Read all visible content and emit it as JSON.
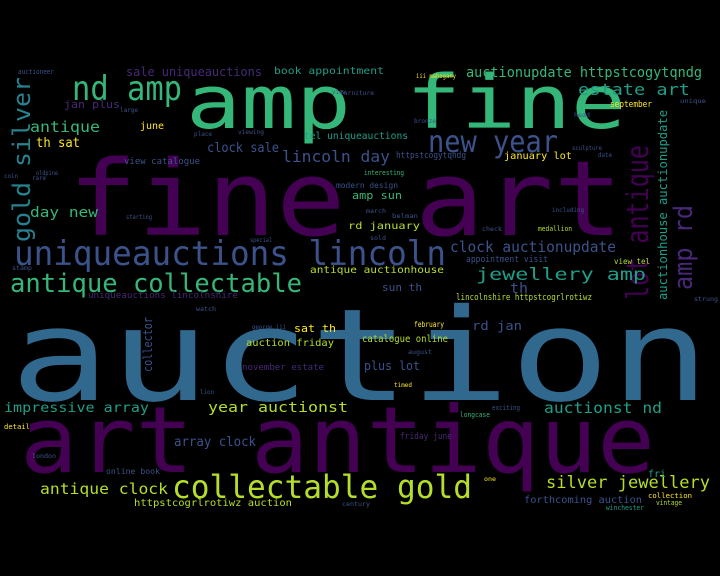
{
  "colors": {
    "background": "#000000",
    "teal": "#31688e",
    "purple": "#440154",
    "indigo": "#3b528b",
    "green": "#35b779",
    "lime": "#b5de2b",
    "yellow": "#fde725",
    "seafoam": "#1f9e89",
    "cyan": "#26828e",
    "violet": "#482878"
  },
  "words": [
    {
      "text": "auction",
      "color": "teal"
    },
    {
      "text": "fine art",
      "color": "purple"
    },
    {
      "text": "art antique",
      "color": "purple"
    },
    {
      "text": "amp fine",
      "color": "green"
    },
    {
      "text": "uniqueauctions lincoln",
      "color": "indigo"
    },
    {
      "text": "antique collectable",
      "color": "green"
    },
    {
      "text": "collectable gold",
      "color": "lime"
    },
    {
      "text": "nd amp",
      "color": "green"
    },
    {
      "text": "new year",
      "color": "indigo"
    },
    {
      "text": "lot antique",
      "color": "purple"
    },
    {
      "text": "gold silver",
      "color": "cyan"
    },
    {
      "text": "amp rd",
      "color": "violet"
    },
    {
      "text": "silver jewellery",
      "color": "lime"
    },
    {
      "text": "auctionupdate httpstcogytqndg",
      "color": "green"
    },
    {
      "text": "estate art",
      "color": "seafoam"
    },
    {
      "text": "lincoln day",
      "color": "indigo"
    },
    {
      "text": "clock auctionupdate",
      "color": "indigo"
    },
    {
      "text": "jewellery amp",
      "color": "seafoam"
    },
    {
      "text": "antique clock",
      "color": "lime"
    },
    {
      "text": "impressive array",
      "color": "seafoam"
    },
    {
      "text": "year auctionst",
      "color": "lime"
    },
    {
      "text": "auctionst nd",
      "color": "seafoam"
    },
    {
      "text": "antique",
      "color": "green"
    },
    {
      "text": "day new",
      "color": "green"
    },
    {
      "text": "auctionhouse auctionupdate",
      "color": "seafoam"
    },
    {
      "text": "array clock",
      "color": "indigo"
    },
    {
      "text": "clock sale",
      "color": "indigo"
    },
    {
      "text": "th sat",
      "color": "yellow"
    },
    {
      "text": "jan plus",
      "color": "violet"
    },
    {
      "text": "sale uniqueauctions",
      "color": "violet"
    },
    {
      "text": "book appointment",
      "color": "seafoam"
    },
    {
      "text": "httpstcogrlrotiwz auction",
      "color": "lime"
    },
    {
      "text": "forthcoming auction",
      "color": "indigo"
    },
    {
      "text": "antique auctionhouse",
      "color": "lime"
    },
    {
      "text": "auction friday",
      "color": "lime"
    },
    {
      "text": "catalogue online",
      "color": "lime"
    },
    {
      "text": "plus lot",
      "color": "indigo"
    },
    {
      "text": "rd jan",
      "color": "indigo"
    },
    {
      "text": "sat th",
      "color": "yellow"
    },
    {
      "text": "amp sun",
      "color": "green"
    },
    {
      "text": "rd january",
      "color": "lime"
    },
    {
      "text": "sun th",
      "color": "indigo"
    },
    {
      "text": "th",
      "color": "indigo"
    },
    {
      "text": "january lot",
      "color": "yellow"
    },
    {
      "text": "tel uniqueauctions",
      "color": "seafoam"
    },
    {
      "text": "view catalogue",
      "color": "indigo"
    },
    {
      "text": "httpstcogytqndg",
      "color": "indigo"
    },
    {
      "text": "appointment visit",
      "color": "indigo"
    },
    {
      "text": "lincolnshire httpstcogrlrotiwz",
      "color": "lime"
    },
    {
      "text": "uniqueauctions lincolnshire",
      "color": "violet"
    },
    {
      "text": "collector",
      "color": "indigo"
    },
    {
      "text": "november estate",
      "color": "violet"
    },
    {
      "text": "modern design",
      "color": "indigo"
    },
    {
      "text": "june",
      "color": "yellow"
    },
    {
      "text": "fri",
      "color": "seafoam"
    },
    {
      "text": "online book",
      "color": "indigo"
    },
    {
      "text": "friday june",
      "color": "violet"
    },
    {
      "text": "september",
      "color": "yellow"
    },
    {
      "text": "february",
      "color": "yellow"
    },
    {
      "text": "view tel",
      "color": "lime"
    },
    {
      "text": "vintage",
      "color": "lime"
    },
    {
      "text": "collection",
      "color": "yellow"
    },
    {
      "text": "winchester",
      "color": "seafoam"
    },
    {
      "text": "medallion",
      "color": "lime"
    },
    {
      "text": "interesting",
      "color": "green"
    },
    {
      "text": "longcase",
      "color": "green"
    },
    {
      "text": "exciting",
      "color": "indigo"
    },
    {
      "text": "auctioneer",
      "color": "indigo"
    },
    {
      "text": "oldpine",
      "color": "indigo"
    },
    {
      "text": "large",
      "color": "indigo"
    },
    {
      "text": "viewing",
      "color": "indigo"
    },
    {
      "text": "iii mahogany",
      "color": "yellow"
    },
    {
      "text": "bronze",
      "color": "indigo"
    },
    {
      "text": "sculpture",
      "color": "indigo"
    },
    {
      "text": "head",
      "color": "indigo"
    },
    {
      "text": "unique",
      "color": "indigo"
    },
    {
      "text": "including",
      "color": "indigo"
    },
    {
      "text": "check",
      "color": "indigo"
    },
    {
      "text": "starting",
      "color": "indigo"
    },
    {
      "text": "special",
      "color": "indigo"
    },
    {
      "text": "stamp",
      "color": "indigo"
    },
    {
      "text": "rare",
      "color": "indigo"
    },
    {
      "text": "detail",
      "color": "yellow"
    },
    {
      "text": "george iii",
      "color": "indigo"
    },
    {
      "text": "march",
      "color": "indigo"
    },
    {
      "text": "belman",
      "color": "indigo"
    },
    {
      "text": "sold",
      "color": "indigo"
    },
    {
      "text": "lion",
      "color": "indigo"
    },
    {
      "text": "timed",
      "color": "yellow"
    },
    {
      "text": "august",
      "color": "indigo"
    },
    {
      "text": "century",
      "color": "indigo"
    },
    {
      "text": "furniture",
      "color": "indigo"
    },
    {
      "text": "one",
      "color": "yellow"
    },
    {
      "text": "watch",
      "color": "indigo"
    },
    {
      "text": "strung",
      "color": "indigo"
    },
    {
      "text": "london",
      "color": "indigo"
    },
    {
      "text": "coin",
      "color": "indigo"
    },
    {
      "text": "view",
      "color": "indigo"
    },
    {
      "text": "place",
      "color": "indigo"
    },
    {
      "text": "date",
      "color": "indigo"
    }
  ]
}
